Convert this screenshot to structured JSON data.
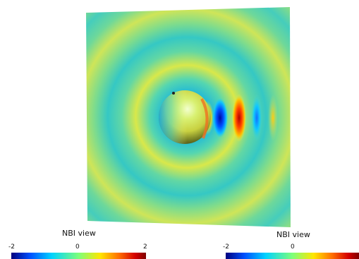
{
  "colorbars": [
    {
      "title": "NBI view",
      "ticks": [
        "-2",
        "0",
        "2"
      ],
      "colors": [
        "#00007f",
        "#0050ff",
        "#00d2ff",
        "#7dff7a",
        "#ffe600",
        "#ff6e00",
        "#d40000",
        "#7f0000"
      ]
    },
    {
      "title": "NBI view",
      "ticks": [
        "-2",
        "0"
      ],
      "colors": [
        "#00007f",
        "#0050ff",
        "#00d2ff",
        "#7dff7a",
        "#ffe600",
        "#ff6e00",
        "#d40000",
        "#7f0000"
      ]
    }
  ]
}
